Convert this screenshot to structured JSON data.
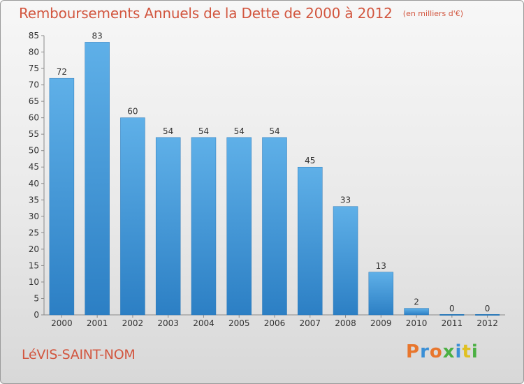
{
  "chart_data": {
    "type": "bar",
    "title": "Remboursements Annuels de la Dette de 2000 à 2012",
    "subtitle": "(en milliers d'€)",
    "categories": [
      "2000",
      "2001",
      "2002",
      "2003",
      "2004",
      "2005",
      "2006",
      "2007",
      "2008",
      "2009",
      "2010",
      "2011",
      "2012"
    ],
    "values": [
      72,
      83,
      60,
      54,
      54,
      54,
      54,
      45,
      33,
      13,
      2,
      0,
      0
    ],
    "ylim": [
      0,
      85
    ],
    "yticks": [
      0,
      5,
      10,
      15,
      20,
      25,
      30,
      35,
      40,
      45,
      50,
      55,
      60,
      65,
      70,
      75,
      80,
      85
    ],
    "xlabel": "",
    "ylabel": "",
    "grid": false,
    "bar_color": "#4a9fdc"
  },
  "footer": {
    "commune": "LéVIS-SAINT-NOM",
    "brand": "Proxiti",
    "brand_colors": [
      "#e8762d",
      "#3a8fd6",
      "#e8762d",
      "#4bb043",
      "#3a8fd6",
      "#e0c020",
      "#4bb043"
    ]
  }
}
